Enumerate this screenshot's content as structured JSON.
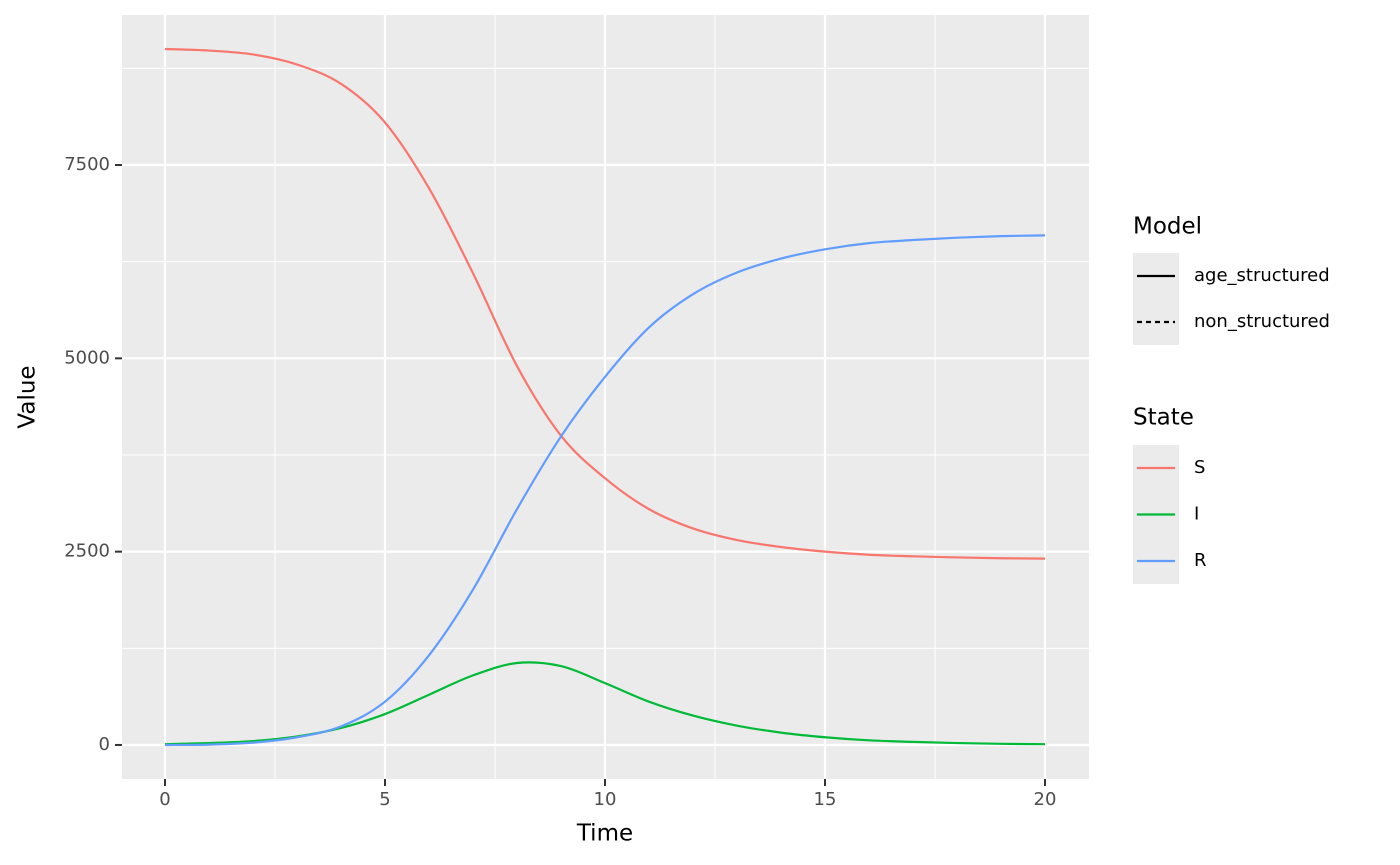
{
  "chart_data": {
    "type": "line",
    "xlabel": "Time",
    "ylabel": "Value",
    "x": [
      0,
      1,
      2,
      3,
      4,
      5,
      6,
      7,
      8,
      9,
      10,
      11,
      12,
      13,
      14,
      15,
      16,
      17,
      18,
      19,
      20
    ],
    "series": [
      {
        "name": "S",
        "color": "#f8766d",
        "values": [
          9000,
          8980,
          8930,
          8800,
          8550,
          8050,
          7200,
          6100,
          4900,
          4000,
          3450,
          3050,
          2800,
          2650,
          2560,
          2500,
          2460,
          2440,
          2425,
          2415,
          2410
        ]
      },
      {
        "name": "I",
        "color": "#00ba38",
        "values": [
          10,
          25,
          50,
          110,
          220,
          400,
          650,
          900,
          1060,
          1020,
          800,
          560,
          380,
          250,
          160,
          100,
          60,
          40,
          25,
          15,
          10
        ]
      },
      {
        "name": "R",
        "color": "#619cff",
        "values": [
          0,
          5,
          30,
          100,
          240,
          560,
          1160,
          2010,
          3050,
          3990,
          4760,
          5400,
          5830,
          6110,
          6290,
          6410,
          6490,
          6530,
          6560,
          6580,
          6590
        ]
      }
    ],
    "xlim": [
      -0.977,
      21.0
    ],
    "ylim": [
      -440,
      9440
    ],
    "xticks": [
      0,
      5,
      10,
      15,
      20
    ],
    "yticks": [
      0,
      2500,
      5000,
      7500
    ],
    "x_minor_grid": [
      2.5,
      7.5,
      12.5,
      17.5
    ],
    "y_minor_grid": [
      1250,
      3750,
      6250,
      8750
    ],
    "grid": true,
    "legend_position": "right",
    "legends": [
      {
        "title": "Model",
        "entries": [
          {
            "name": "age_structured",
            "linetype": "solid"
          },
          {
            "name": "non_structured",
            "linetype": "dashed"
          }
        ]
      },
      {
        "title": "State"
      }
    ]
  }
}
